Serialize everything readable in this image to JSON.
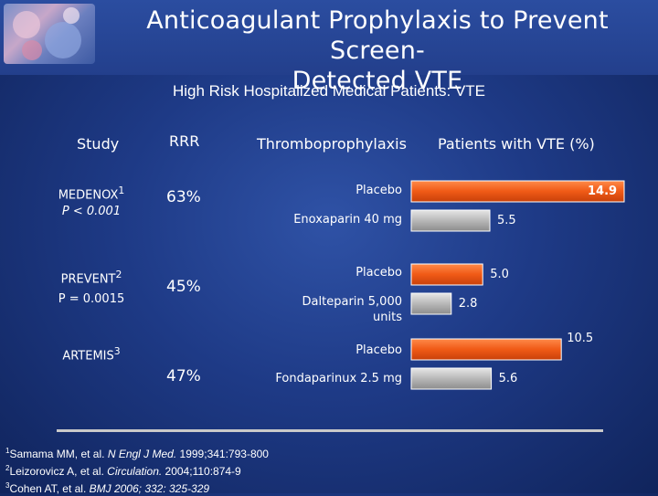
{
  "title_line1": "Anticoagulant Prophylaxis to Prevent Screen-",
  "title_line2": "Detected VTE",
  "subtitle": "High Risk Hospitalized Medical Patients: VTE",
  "headers": {
    "study": "Study",
    "rrr": "RRR",
    "thrombo": "Thromboprophylaxis",
    "patients": "Patients with VTE (%)"
  },
  "studies": [
    {
      "name": "MEDENOX",
      "sup": "1",
      "p": "P < 0.001",
      "rrr": "63%"
    },
    {
      "name": "PREVENT",
      "sup": "2",
      "p": "P = 0.0015",
      "rrr": "45%"
    },
    {
      "name": "ARTEMIS",
      "sup": "3",
      "p": "",
      "rrr": "47%"
    }
  ],
  "colors": {
    "placebo": "#f05a16",
    "treatment": "#b8b8b8"
  },
  "chart_data": {
    "type": "bar",
    "orientation": "horizontal",
    "xlim": [
      0,
      14.9
    ],
    "bars": [
      {
        "category": "Placebo",
        "value": 14.9,
        "label": "14.9",
        "series": "placebo"
      },
      {
        "category": "Enoxaparin 40 mg",
        "value": 5.5,
        "label": "5.5",
        "series": "treatment"
      },
      {
        "category": "Placebo",
        "value": 5.0,
        "label": "5.0",
        "series": "placebo"
      },
      {
        "category": "Dalteparin 5,000 units",
        "value": 2.8,
        "label": "2.8",
        "series": "treatment"
      },
      {
        "category": "Placebo",
        "value": 10.5,
        "label": "10.5",
        "series": "placebo"
      },
      {
        "category": "Fondaparinux 2.5 mg",
        "value": 5.6,
        "label": "5.6",
        "series": "treatment"
      }
    ]
  },
  "references": [
    {
      "num": "1",
      "pre": "Samama MM, et al. ",
      "journal": "N Engl J Med.",
      "post": " 1999;341:793-800"
    },
    {
      "num": "2",
      "pre": "Leizorovicz A, et al. ",
      "journal": "Circulation.",
      "post": " 2004;110:874-9"
    },
    {
      "num": "3",
      "pre": "Cohen AT, et al. ",
      "journal": "BMJ 2006; 332: 325-329",
      "post": ""
    }
  ]
}
